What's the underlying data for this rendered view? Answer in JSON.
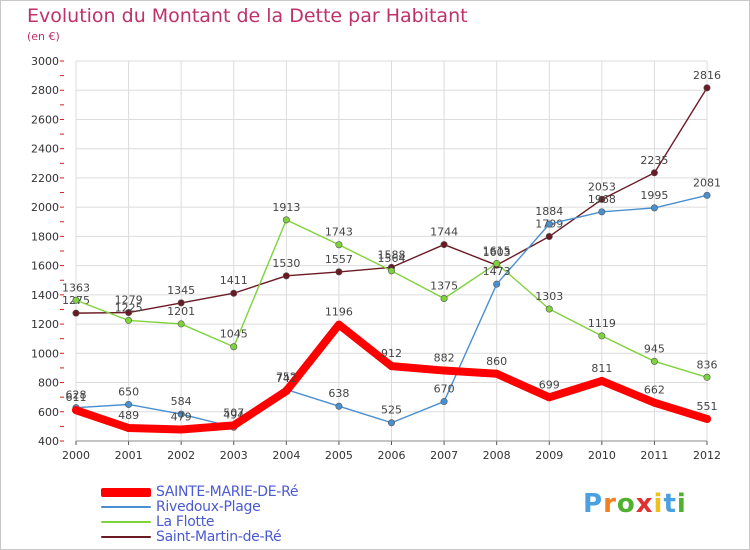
{
  "chart_data": {
    "type": "line",
    "title": "Evolution du Montant de la Dette par Habitant",
    "subtitle": "(en €)",
    "x": [
      "2000",
      "2001",
      "2002",
      "2003",
      "2004",
      "2005",
      "2006",
      "2007",
      "2008",
      "2009",
      "2010",
      "2011",
      "2012"
    ],
    "ylim": [
      400,
      3000
    ],
    "yticks": [
      400,
      600,
      800,
      1000,
      1200,
      1400,
      1600,
      1800,
      2000,
      2200,
      2400,
      2600,
      2800,
      3000
    ],
    "grid": true,
    "legend_position": "bottom-left",
    "series": [
      {
        "name": "SAINTE-MARIE-DE-Ré",
        "color": "#ff0000",
        "values": [
          611,
          489,
          479,
          507,
          742,
          1196,
          912,
          882,
          860,
          699,
          811,
          662,
          551
        ]
      },
      {
        "name": "Rivedoux-Plage",
        "color": "#4a90d0",
        "values": [
          628,
          650,
          584,
          494,
          752,
          638,
          525,
          670,
          1473,
          1884,
          1968,
          1995,
          2081
        ]
      },
      {
        "name": "La Flotte",
        "color": "#7ed33b",
        "values": [
          1363,
          1225,
          1201,
          1045,
          1913,
          1743,
          1564,
          1375,
          1615,
          1303,
          1119,
          945,
          836
        ]
      },
      {
        "name": "Saint-Martin-de-Ré",
        "color": "#6b1a24",
        "values": [
          1275,
          1279,
          1345,
          1411,
          1530,
          1557,
          1588,
          1744,
          1603,
          1799,
          2053,
          2235,
          2816
        ]
      }
    ]
  },
  "logo": {
    "letters": [
      "P",
      "r",
      "o",
      "x",
      "i",
      "t",
      "i"
    ],
    "colors": [
      "#4aa0e0",
      "#f08020",
      "#50b030",
      "#e03030",
      "#f0c020",
      "#4aa0e0",
      "#50b030"
    ]
  }
}
